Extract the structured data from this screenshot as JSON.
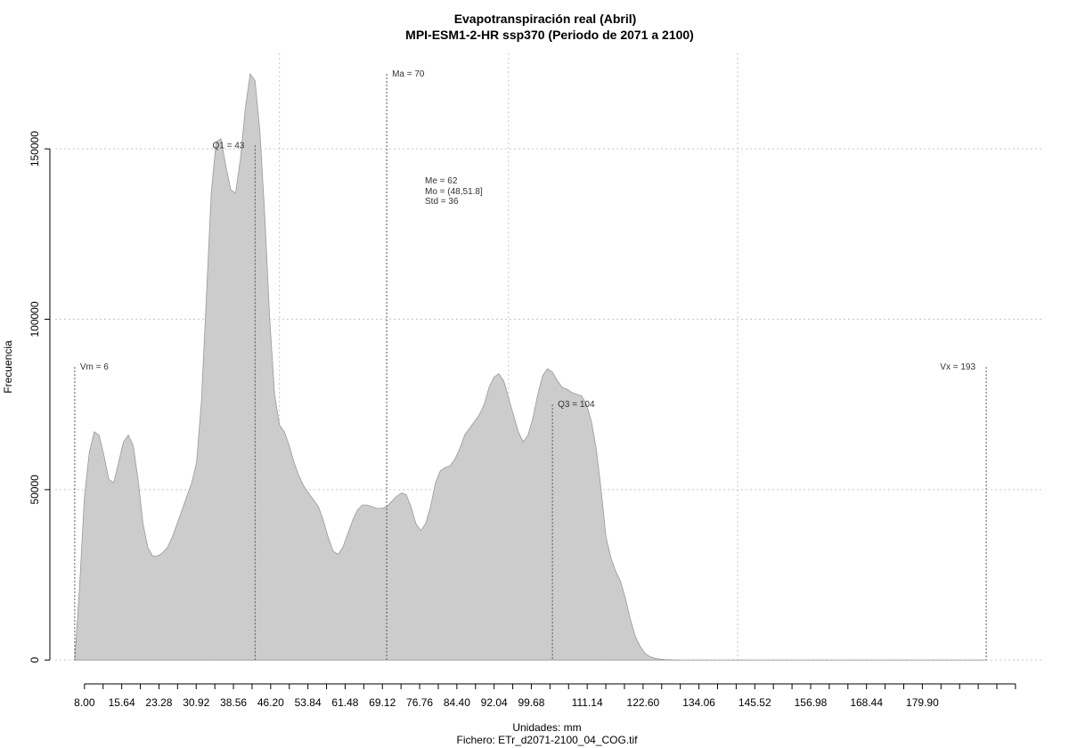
{
  "chart_data": {
    "type": "area",
    "title": "Evapotranspiración real (Abril)",
    "subtitle": "MPI-ESM1-2-HR ssp370 (Periodo de 2071 a 2100)",
    "xlabel": "Unidades: mm",
    "footer": "Fichero: ETr_d2071-2100_04_COG.tif",
    "ylabel": "Frecuencia",
    "xlim": [
      2,
      204.5
    ],
    "ylim": [
      -7000,
      178000
    ],
    "x_ticks": [
      8,
      11.82,
      15.64,
      19.46,
      23.28,
      27.1,
      30.92,
      34.74,
      38.56,
      42.38,
      46.2,
      50.02,
      53.84,
      57.66,
      61.48,
      65.3,
      69.12,
      72.94,
      76.76,
      80.58,
      84.4,
      88.22,
      92.04,
      95.86,
      99.68,
      103.5,
      107.32,
      111.14,
      114.96,
      118.78,
      122.6,
      126.42,
      130.24,
      134.06,
      137.88,
      141.7,
      145.52,
      149.34,
      153.16,
      156.98,
      160.8,
      164.62,
      168.44,
      172.26,
      176.08,
      179.9,
      183.72,
      187.54,
      191.36,
      195.18,
      199
    ],
    "x_tick_labels": [
      "8.00",
      "15.64",
      "23.28",
      "30.92",
      "38.56",
      "46.20",
      "53.84",
      "61.48",
      "69.12",
      "76.76",
      "84.40",
      "92.04",
      "99.68",
      "111.14",
      "122.60",
      "134.06",
      "145.52",
      "156.98",
      "168.44",
      "179.90"
    ],
    "x_tick_label_positions": [
      8,
      15.64,
      23.28,
      30.92,
      38.56,
      46.2,
      53.84,
      61.48,
      69.12,
      76.76,
      84.4,
      92.04,
      99.68,
      111.14,
      122.6,
      134.06,
      145.52,
      156.98,
      168.44,
      179.9
    ],
    "y_ticks": [
      0,
      50000,
      100000,
      150000
    ],
    "y_tick_labels": [
      "0",
      "50000",
      "100000",
      "150000"
    ],
    "x_grid": [
      48,
      95,
      142
    ],
    "y_grid": [
      0,
      50000,
      100000,
      150000
    ],
    "fill_color": "#cccccc",
    "outline_color": "#999999",
    "series": [
      {
        "x": [
          6,
          7,
          8,
          9,
          10,
          11,
          12,
          13,
          14,
          15,
          16,
          17,
          18,
          19,
          20,
          21,
          22,
          23,
          24,
          25,
          26,
          27,
          28,
          29,
          30,
          31,
          32,
          33,
          34,
          35,
          36,
          37,
          38,
          39,
          40,
          41,
          42,
          43,
          44,
          45,
          46,
          47,
          48,
          49,
          50,
          51,
          52,
          53,
          54,
          55,
          56,
          57,
          58,
          59,
          60,
          61,
          62,
          63,
          64,
          65,
          66,
          67,
          68,
          69,
          70,
          71,
          72,
          73,
          74,
          75,
          76,
          77,
          78,
          79,
          80,
          81,
          82,
          83,
          84,
          85,
          86,
          87,
          88,
          89,
          90,
          91,
          92,
          93,
          94,
          95,
          96,
          97,
          98,
          99,
          100,
          101,
          102,
          103,
          104,
          105,
          106,
          107,
          108,
          109,
          110,
          111,
          112,
          113,
          114,
          115,
          116,
          117,
          118,
          119,
          120,
          121,
          122,
          123,
          124,
          125,
          126,
          127,
          128,
          129,
          130,
          131,
          132,
          133,
          134,
          135,
          136,
          137,
          138,
          139,
          140,
          141,
          142,
          143,
          144,
          145,
          146,
          147,
          148,
          149,
          150,
          160,
          170,
          180,
          190,
          193
        ],
        "y": [
          0,
          22000,
          48000,
          61000,
          67000,
          66000,
          60000,
          53000,
          52000,
          58000,
          64000,
          66000,
          63000,
          53000,
          40000,
          33000,
          30500,
          30500,
          31500,
          33000,
          36000,
          40000,
          44000,
          48000,
          52000,
          58000,
          76000,
          106000,
          137000,
          152000,
          153000,
          145000,
          138000,
          137000,
          147000,
          162000,
          172000,
          170000,
          155000,
          130000,
          100000,
          78000,
          69000,
          67000,
          63000,
          58000,
          54000,
          51000,
          49000,
          47000,
          45000,
          41000,
          36000,
          32000,
          31000,
          33000,
          37000,
          41000,
          44000,
          45500,
          45500,
          45000,
          44500,
          44500,
          45000,
          46500,
          48000,
          49000,
          48500,
          45000,
          40000,
          38000,
          40000,
          45000,
          52000,
          55500,
          56500,
          57000,
          59000,
          62000,
          66000,
          68000,
          70000,
          72000,
          75000,
          80000,
          83000,
          84000,
          82000,
          77000,
          72000,
          67000,
          64000,
          66000,
          71000,
          78000,
          83500,
          85500,
          84500,
          82000,
          80000,
          79500,
          78500,
          78000,
          77500,
          75000,
          70000,
          62000,
          50000,
          36000,
          30000,
          26000,
          23000,
          18000,
          12000,
          7000,
          4000,
          2000,
          1000,
          500,
          300,
          150,
          100,
          50,
          20,
          10,
          5,
          0,
          0,
          0,
          0,
          0,
          0,
          0,
          0,
          0,
          0,
          0,
          0,
          0,
          0,
          0,
          0,
          0,
          0,
          0,
          0,
          0,
          0,
          0
        ]
      }
    ],
    "markers": [
      {
        "label": "Vm = 6",
        "x": 6,
        "top": 86000
      },
      {
        "label": "Q1 = 43",
        "x": 43,
        "top": 151000
      },
      {
        "label": "Ma = 70",
        "x": 70,
        "top": 172000
      },
      {
        "label": "Q3 = 104",
        "x": 104,
        "top": 75000
      },
      {
        "label": "Vx = 193",
        "x": 193,
        "top": 86000
      }
    ],
    "stats": {
      "me": "Me = 62",
      "mo": "Mo = (48,51.8]",
      "std": "Std = 36"
    }
  }
}
